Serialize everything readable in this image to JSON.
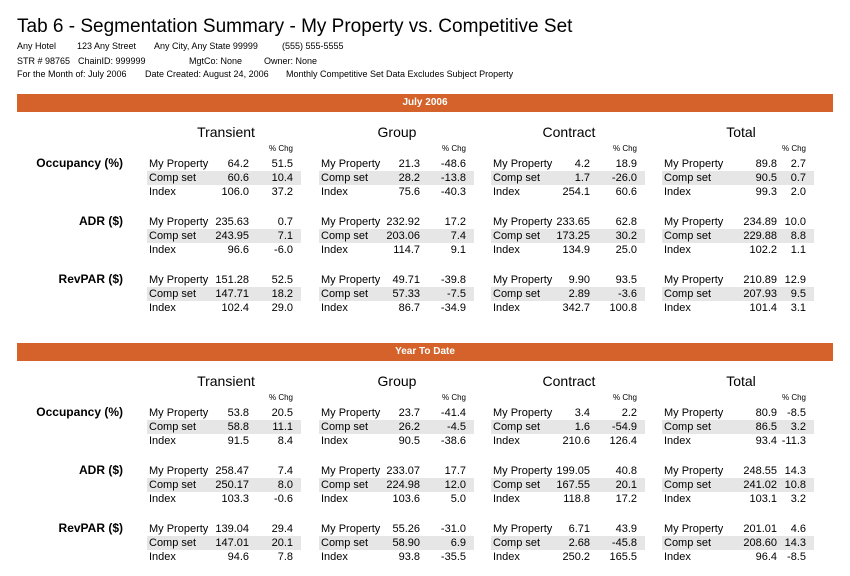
{
  "title": "Tab 6 - Segmentation Summary - My Property vs. Competitive Set",
  "info_lines": [
    [
      "Any Hotel",
      "123 Any Street",
      "Any City, Any State  99999",
      "(555) 555-5555"
    ],
    [
      "STR # 98765",
      "ChainID: 999999",
      "MgtCo: None",
      "Owner: None"
    ],
    [
      "For the Month of: July 2006",
      "Date Created: August 24, 2006",
      "Monthly Competitive Set Data Excludes Subject Property"
    ]
  ],
  "pct_change_label": "% Chg",
  "segments": [
    "Transient",
    "Group",
    "Contract",
    "Total"
  ],
  "row_labels": [
    "My Property",
    "Comp set",
    "Index"
  ],
  "metrics": [
    "Occupancy (%)",
    "ADR ($)",
    "RevPAR ($)"
  ],
  "colors": {
    "band": "#d4622a",
    "shade": "#e6e6e6"
  },
  "sections": [
    {
      "title": "July 2006",
      "data": [
        [
          [
            [
              "64.2",
              "51.5"
            ],
            [
              "60.6",
              "10.4"
            ],
            [
              "106.0",
              "37.2"
            ]
          ],
          [
            [
              "21.3",
              "-48.6"
            ],
            [
              "28.2",
              "-13.8"
            ],
            [
              "75.6",
              "-40.3"
            ]
          ],
          [
            [
              "4.2",
              "18.9"
            ],
            [
              "1.7",
              "-26.0"
            ],
            [
              "254.1",
              "60.6"
            ]
          ],
          [
            [
              "89.8",
              "2.7"
            ],
            [
              "90.5",
              "0.7"
            ],
            [
              "99.3",
              "2.0"
            ]
          ]
        ],
        [
          [
            [
              "235.63",
              "0.7"
            ],
            [
              "243.95",
              "7.1"
            ],
            [
              "96.6",
              "-6.0"
            ]
          ],
          [
            [
              "232.92",
              "17.2"
            ],
            [
              "203.06",
              "7.4"
            ],
            [
              "114.7",
              "9.1"
            ]
          ],
          [
            [
              "233.65",
              "62.8"
            ],
            [
              "173.25",
              "30.2"
            ],
            [
              "134.9",
              "25.0"
            ]
          ],
          [
            [
              "234.89",
              "10.0"
            ],
            [
              "229.88",
              "8.8"
            ],
            [
              "102.2",
              "1.1"
            ]
          ]
        ],
        [
          [
            [
              "151.28",
              "52.5"
            ],
            [
              "147.71",
              "18.2"
            ],
            [
              "102.4",
              "29.0"
            ]
          ],
          [
            [
              "49.71",
              "-39.8"
            ],
            [
              "57.33",
              "-7.5"
            ],
            [
              "86.7",
              "-34.9"
            ]
          ],
          [
            [
              "9.90",
              "93.5"
            ],
            [
              "2.89",
              "-3.6"
            ],
            [
              "342.7",
              "100.8"
            ]
          ],
          [
            [
              "210.89",
              "12.9"
            ],
            [
              "207.93",
              "9.5"
            ],
            [
              "101.4",
              "3.1"
            ]
          ]
        ]
      ]
    },
    {
      "title": "Year To Date",
      "data": [
        [
          [
            [
              "53.8",
              "20.5"
            ],
            [
              "58.8",
              "11.1"
            ],
            [
              "91.5",
              "8.4"
            ]
          ],
          [
            [
              "23.7",
              "-41.4"
            ],
            [
              "26.2",
              "-4.5"
            ],
            [
              "90.5",
              "-38.6"
            ]
          ],
          [
            [
              "3.4",
              "2.2"
            ],
            [
              "1.6",
              "-54.9"
            ],
            [
              "210.6",
              "126.4"
            ]
          ],
          [
            [
              "80.9",
              "-8.5"
            ],
            [
              "86.5",
              "3.2"
            ],
            [
              "93.4",
              "-11.3"
            ]
          ]
        ],
        [
          [
            [
              "258.47",
              "7.4"
            ],
            [
              "250.17",
              "8.0"
            ],
            [
              "103.3",
              "-0.6"
            ]
          ],
          [
            [
              "233.07",
              "17.7"
            ],
            [
              "224.98",
              "12.0"
            ],
            [
              "103.6",
              "5.0"
            ]
          ],
          [
            [
              "199.05",
              "40.8"
            ],
            [
              "167.55",
              "20.1"
            ],
            [
              "118.8",
              "17.2"
            ]
          ],
          [
            [
              "248.55",
              "14.3"
            ],
            [
              "241.02",
              "10.8"
            ],
            [
              "103.1",
              "3.2"
            ]
          ]
        ],
        [
          [
            [
              "139.04",
              "29.4"
            ],
            [
              "147.01",
              "20.1"
            ],
            [
              "94.6",
              "7.8"
            ]
          ],
          [
            [
              "55.26",
              "-31.0"
            ],
            [
              "58.90",
              "6.9"
            ],
            [
              "93.8",
              "-35.5"
            ]
          ],
          [
            [
              "6.71",
              "43.9"
            ],
            [
              "2.68",
              "-45.8"
            ],
            [
              "250.2",
              "165.5"
            ]
          ],
          [
            [
              "201.01",
              "4.6"
            ],
            [
              "208.60",
              "14.3"
            ],
            [
              "96.4",
              "-8.5"
            ]
          ]
        ]
      ]
    }
  ]
}
